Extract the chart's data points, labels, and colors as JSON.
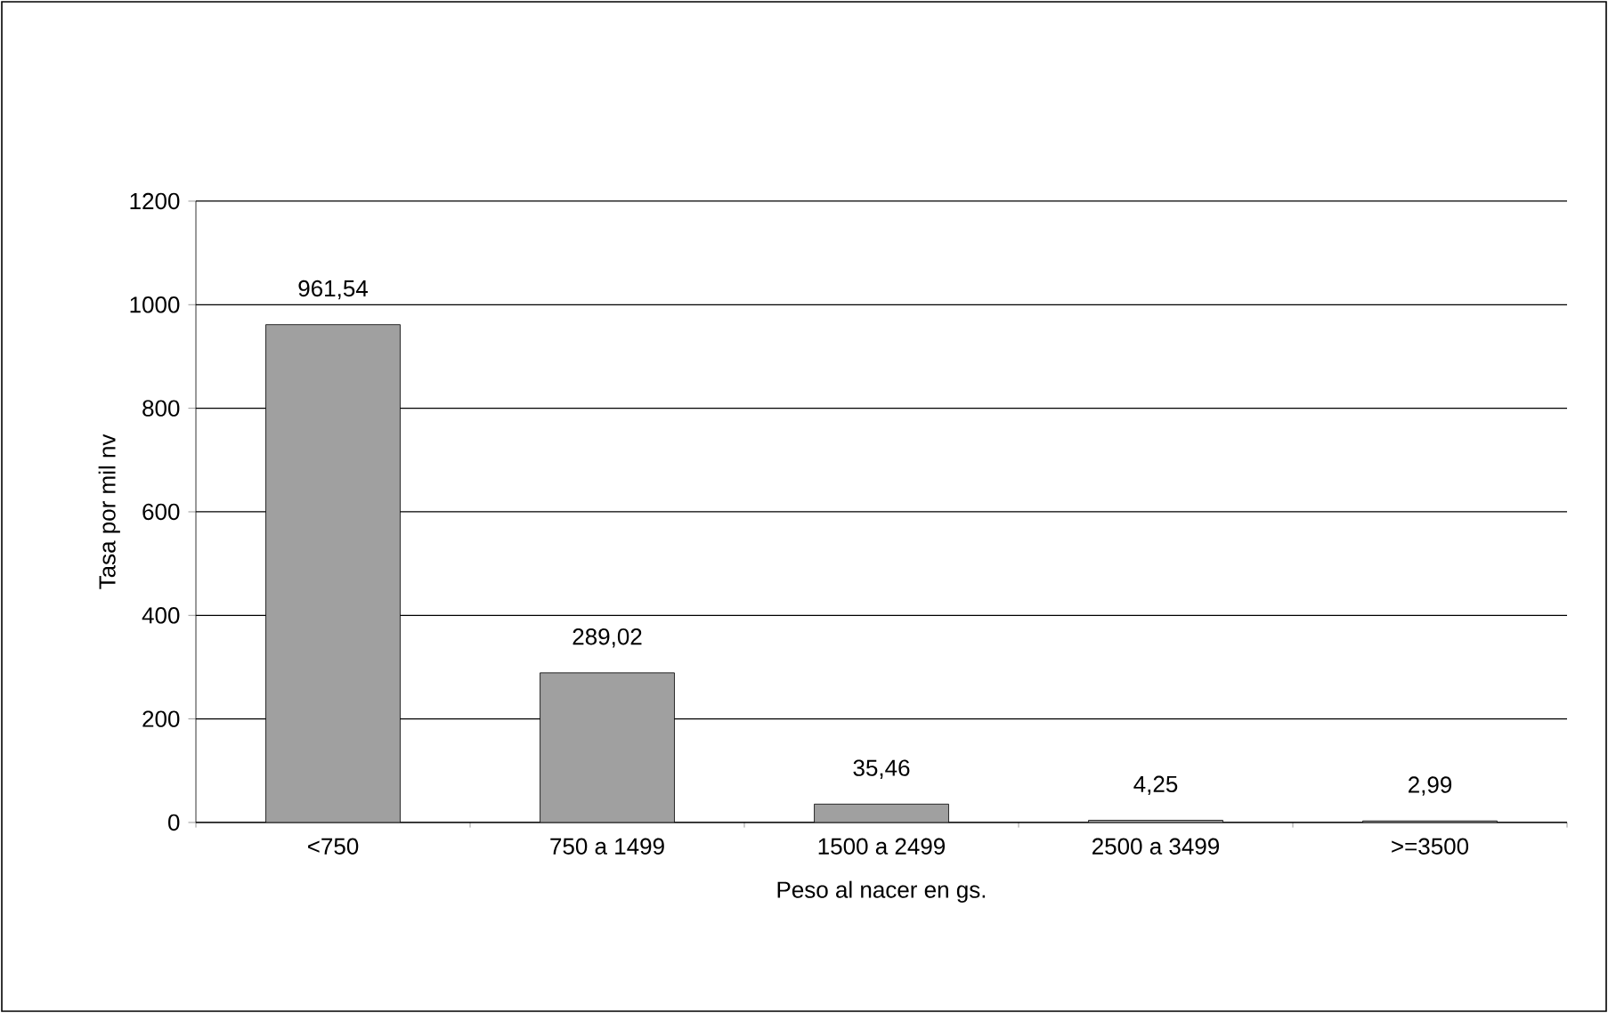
{
  "chart_data": {
    "type": "bar",
    "xlabel": "Peso al nacer en gs.",
    "ylabel": "Tasa por mil nv",
    "categories": [
      "<750",
      "750 a 1499",
      "1500 a 2499",
      "2500 a 3499",
      ">=3500"
    ],
    "values": [
      961.54,
      289.02,
      35.46,
      4.25,
      2.99
    ],
    "value_labels": [
      "961,54",
      "289,02",
      "35,46",
      "4,25",
      "2,99"
    ],
    "color": "#a0a0a0",
    "ylim": [
      0,
      1200
    ],
    "yticks": [
      0,
      200,
      400,
      600,
      800,
      1000,
      1200
    ],
    "grid": "y"
  }
}
